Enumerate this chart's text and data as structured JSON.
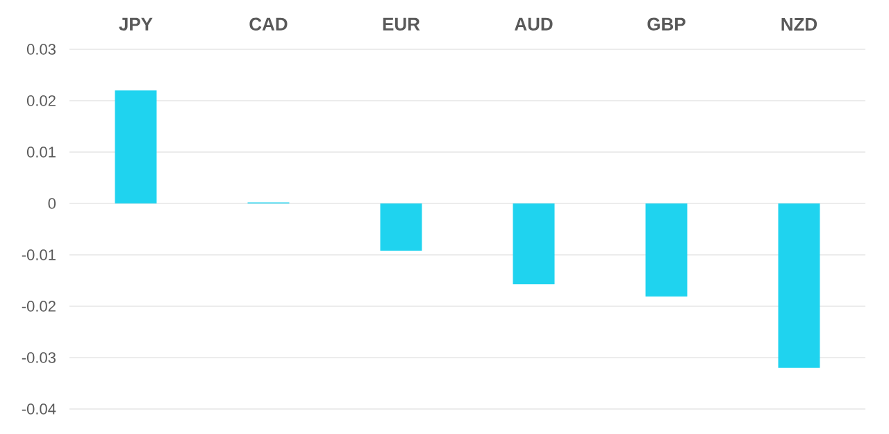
{
  "chart_data": {
    "type": "bar",
    "categories": [
      "JPY",
      "CAD",
      "EUR",
      "AUD",
      "GBP",
      "NZD"
    ],
    "values": [
      0.022,
      0.0002,
      -0.0092,
      -0.0157,
      -0.0181,
      -0.032
    ],
    "color": "#1fd3ef",
    "ylim": [
      -0.04,
      0.03
    ],
    "yticks": [
      -0.04,
      -0.03,
      -0.02,
      -0.01,
      0,
      0.01,
      0.02,
      0.03
    ],
    "grid": "y"
  }
}
